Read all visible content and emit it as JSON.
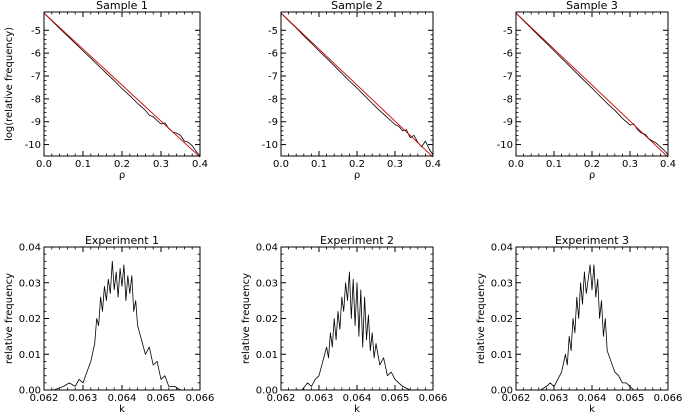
{
  "chart_data": [
    {
      "type": "line",
      "title": "Sample 1",
      "xlabel": "ρ",
      "ylabel": "log(relative frequency)",
      "xlim": [
        0.0,
        0.4
      ],
      "ylim": [
        -10.5,
        -4.2
      ],
      "xticks": [
        0.0,
        0.1,
        0.2,
        0.3,
        0.4
      ],
      "xtick_labels": [
        "0.0",
        "0.1",
        "0.2",
        "0.3",
        "0.4"
      ],
      "yticks": [
        -5,
        -6,
        -7,
        -8,
        -9,
        -10
      ],
      "ytick_labels": [
        "-5",
        "-6",
        "-7",
        "-8",
        "-9",
        "-10"
      ],
      "grid": false,
      "series": [
        {
          "color": "#000000",
          "style": "empirical",
          "x": [
            0.0,
            0.02,
            0.04,
            0.06,
            0.08,
            0.1,
            0.12,
            0.14,
            0.16,
            0.18,
            0.2,
            0.22,
            0.24,
            0.26,
            0.27,
            0.28,
            0.29,
            0.3,
            0.31,
            0.32,
            0.33,
            0.34,
            0.35,
            0.36,
            0.37,
            0.38,
            0.39,
            0.4
          ],
          "y": [
            -4.25,
            -4.58,
            -4.92,
            -5.24,
            -5.57,
            -5.9,
            -6.22,
            -6.56,
            -6.88,
            -7.2,
            -7.55,
            -7.86,
            -8.2,
            -8.5,
            -8.72,
            -8.78,
            -8.95,
            -9.1,
            -9.05,
            -9.3,
            -9.45,
            -9.5,
            -9.6,
            -9.85,
            -9.9,
            -10.05,
            -10.3,
            -10.5
          ]
        },
        {
          "color": "#cc0000",
          "style": "fit",
          "x": [
            0.0,
            0.4
          ],
          "y": [
            -4.25,
            -10.55
          ]
        }
      ]
    },
    {
      "type": "line",
      "title": "Sample 2",
      "xlabel": "ρ",
      "ylabel": "",
      "xlim": [
        0.0,
        0.4
      ],
      "ylim": [
        -10.5,
        -4.2
      ],
      "xticks": [
        0.0,
        0.1,
        0.2,
        0.3,
        0.4
      ],
      "xtick_labels": [
        "0.0",
        "0.1",
        "0.2",
        "0.3",
        "0.4"
      ],
      "yticks": [
        -5,
        -6,
        -7,
        -8,
        -9,
        -10
      ],
      "ytick_labels": [
        "-5",
        "-6",
        "-7",
        "-8",
        "-9",
        "-10"
      ],
      "grid": false,
      "series": [
        {
          "color": "#000000",
          "style": "empirical",
          "x": [
            0.0,
            0.02,
            0.04,
            0.06,
            0.08,
            0.1,
            0.12,
            0.14,
            0.16,
            0.18,
            0.2,
            0.22,
            0.24,
            0.26,
            0.28,
            0.3,
            0.31,
            0.32,
            0.33,
            0.34,
            0.35,
            0.36,
            0.37,
            0.38,
            0.39,
            0.4
          ],
          "y": [
            -4.25,
            -4.58,
            -4.9,
            -5.24,
            -5.56,
            -5.9,
            -6.22,
            -6.55,
            -6.88,
            -7.22,
            -7.53,
            -7.86,
            -8.2,
            -8.52,
            -8.82,
            -9.12,
            -9.2,
            -9.4,
            -9.35,
            -9.7,
            -9.6,
            -9.9,
            -10.1,
            -9.85,
            -10.2,
            -10.45
          ]
        },
        {
          "color": "#cc0000",
          "style": "fit",
          "x": [
            0.0,
            0.4
          ],
          "y": [
            -4.25,
            -10.55
          ]
        }
      ]
    },
    {
      "type": "line",
      "title": "Sample 3",
      "xlabel": "ρ",
      "ylabel": "",
      "xlim": [
        0.0,
        0.4
      ],
      "ylim": [
        -10.5,
        -4.2
      ],
      "xticks": [
        0.0,
        0.1,
        0.2,
        0.3,
        0.4
      ],
      "xtick_labels": [
        "0.0",
        "0.1",
        "0.2",
        "0.3",
        "0.4"
      ],
      "yticks": [
        -5,
        -6,
        -7,
        -8,
        -9,
        -10
      ],
      "ytick_labels": [
        "-5",
        "-6",
        "-7",
        "-8",
        "-9",
        "-10"
      ],
      "grid": false,
      "series": [
        {
          "color": "#000000",
          "style": "empirical",
          "x": [
            0.0,
            0.02,
            0.04,
            0.06,
            0.08,
            0.1,
            0.12,
            0.14,
            0.16,
            0.18,
            0.2,
            0.22,
            0.24,
            0.26,
            0.28,
            0.3,
            0.31,
            0.32,
            0.33,
            0.34,
            0.35,
            0.36,
            0.37,
            0.38,
            0.39,
            0.4
          ],
          "y": [
            -4.25,
            -4.58,
            -4.91,
            -5.24,
            -5.56,
            -5.89,
            -6.22,
            -6.55,
            -6.88,
            -7.21,
            -7.53,
            -7.87,
            -8.2,
            -8.5,
            -8.85,
            -9.15,
            -9.1,
            -9.35,
            -9.5,
            -9.55,
            -9.75,
            -9.85,
            -9.95,
            -10.1,
            -10.25,
            -10.45
          ]
        },
        {
          "color": "#cc0000",
          "style": "fit",
          "x": [
            0.0,
            0.4
          ],
          "y": [
            -4.25,
            -10.55
          ]
        }
      ]
    },
    {
      "type": "line",
      "title": "Experiment 1",
      "xlabel": "k",
      "ylabel": "relative frequency",
      "xlim": [
        0.062,
        0.066
      ],
      "ylim": [
        0.0,
        0.04
      ],
      "xticks": [
        0.062,
        0.063,
        0.064,
        0.065,
        0.066
      ],
      "xtick_labels": [
        "0.062",
        "0.063",
        "0.064",
        "0.065",
        "0.066"
      ],
      "yticks": [
        0.0,
        0.01,
        0.02,
        0.03,
        0.04
      ],
      "ytick_labels": [
        "0.00",
        "0.01",
        "0.02",
        "0.03",
        "0.04"
      ],
      "grid": false,
      "series": [
        {
          "color": "#000000",
          "x": [
            0.06225,
            0.0625,
            0.06265,
            0.0628,
            0.0629,
            0.063,
            0.0631,
            0.0632,
            0.0633,
            0.06335,
            0.0634,
            0.06345,
            0.0635,
            0.06355,
            0.0636,
            0.06365,
            0.0637,
            0.06375,
            0.0638,
            0.06385,
            0.0639,
            0.06395,
            0.064,
            0.06405,
            0.0641,
            0.06415,
            0.0642,
            0.06425,
            0.0643,
            0.06435,
            0.0644,
            0.0645,
            0.0646,
            0.0647,
            0.0648,
            0.0649,
            0.065,
            0.0651,
            0.0652,
            0.06535,
            0.0655
          ],
          "y": [
            0.0,
            0.001,
            0.002,
            0.001,
            0.003,
            0.002,
            0.005,
            0.008,
            0.013,
            0.02,
            0.018,
            0.026,
            0.022,
            0.029,
            0.025,
            0.031,
            0.027,
            0.036,
            0.028,
            0.033,
            0.026,
            0.034,
            0.029,
            0.035,
            0.025,
            0.032,
            0.027,
            0.032,
            0.022,
            0.025,
            0.018,
            0.014,
            0.01,
            0.012,
            0.007,
            0.008,
            0.003,
            0.004,
            0.001,
            0.001,
            0.0
          ]
        }
      ]
    },
    {
      "type": "line",
      "title": "Experiment 2",
      "xlabel": "k",
      "ylabel": "relative frequency",
      "xlim": [
        0.062,
        0.066
      ],
      "ylim": [
        0.0,
        0.04
      ],
      "xticks": [
        0.062,
        0.063,
        0.064,
        0.065,
        0.066
      ],
      "xtick_labels": [
        "0.062",
        "0.063",
        "0.064",
        "0.065",
        "0.066"
      ],
      "yticks": [
        0.0,
        0.01,
        0.02,
        0.03,
        0.04
      ],
      "ytick_labels": [
        "0.00",
        "0.01",
        "0.02",
        "0.03",
        "0.04"
      ],
      "grid": false,
      "series": [
        {
          "color": "#000000",
          "x": [
            0.06255,
            0.0627,
            0.0628,
            0.0629,
            0.063,
            0.0631,
            0.0632,
            0.06325,
            0.0633,
            0.06335,
            0.0634,
            0.06345,
            0.0635,
            0.06355,
            0.0636,
            0.06365,
            0.0637,
            0.06375,
            0.0638,
            0.06385,
            0.0639,
            0.06395,
            0.064,
            0.06405,
            0.0641,
            0.06415,
            0.0642,
            0.06425,
            0.0643,
            0.06435,
            0.0644,
            0.06445,
            0.0645,
            0.0646,
            0.0647,
            0.0648,
            0.0649,
            0.065,
            0.0651,
            0.0652,
            0.0654
          ],
          "y": [
            0.0,
            0.002,
            0.001,
            0.003,
            0.004,
            0.008,
            0.012,
            0.009,
            0.016,
            0.012,
            0.02,
            0.014,
            0.022,
            0.017,
            0.026,
            0.022,
            0.03,
            0.025,
            0.033,
            0.02,
            0.031,
            0.018,
            0.03,
            0.015,
            0.028,
            0.012,
            0.026,
            0.014,
            0.021,
            0.011,
            0.016,
            0.009,
            0.013,
            0.007,
            0.009,
            0.004,
            0.005,
            0.003,
            0.002,
            0.001,
            0.0
          ]
        }
      ]
    },
    {
      "type": "line",
      "title": "Experiment 3",
      "xlabel": "k",
      "ylabel": "relative frequency",
      "xlim": [
        0.062,
        0.066
      ],
      "ylim": [
        0.0,
        0.04
      ],
      "xticks": [
        0.062,
        0.063,
        0.064,
        0.065,
        0.066
      ],
      "xtick_labels": [
        "0.062",
        "0.063",
        "0.064",
        "0.065",
        "0.066"
      ],
      "yticks": [
        0.0,
        0.01,
        0.02,
        0.03,
        0.04
      ],
      "ytick_labels": [
        "0.00",
        "0.01",
        "0.02",
        "0.03",
        "0.04"
      ],
      "grid": false,
      "series": [
        {
          "color": "#000000",
          "x": [
            0.06265,
            0.0628,
            0.0629,
            0.063,
            0.0631,
            0.0632,
            0.0633,
            0.06335,
            0.0634,
            0.06345,
            0.0635,
            0.06355,
            0.0636,
            0.06365,
            0.0637,
            0.06375,
            0.0638,
            0.06385,
            0.0639,
            0.06395,
            0.064,
            0.06405,
            0.0641,
            0.06415,
            0.0642,
            0.06425,
            0.0643,
            0.06435,
            0.0644,
            0.0645,
            0.0646,
            0.0647,
            0.0648,
            0.0649,
            0.065,
            0.0651,
            0.0653
          ],
          "y": [
            0.0,
            0.001,
            0.002,
            0.001,
            0.003,
            0.005,
            0.01,
            0.007,
            0.015,
            0.011,
            0.02,
            0.016,
            0.026,
            0.02,
            0.03,
            0.024,
            0.033,
            0.027,
            0.031,
            0.035,
            0.028,
            0.035,
            0.026,
            0.031,
            0.02,
            0.025,
            0.015,
            0.02,
            0.011,
            0.008,
            0.005,
            0.004,
            0.002,
            0.002,
            0.001,
            0.0,
            0.0
          ]
        }
      ]
    }
  ]
}
